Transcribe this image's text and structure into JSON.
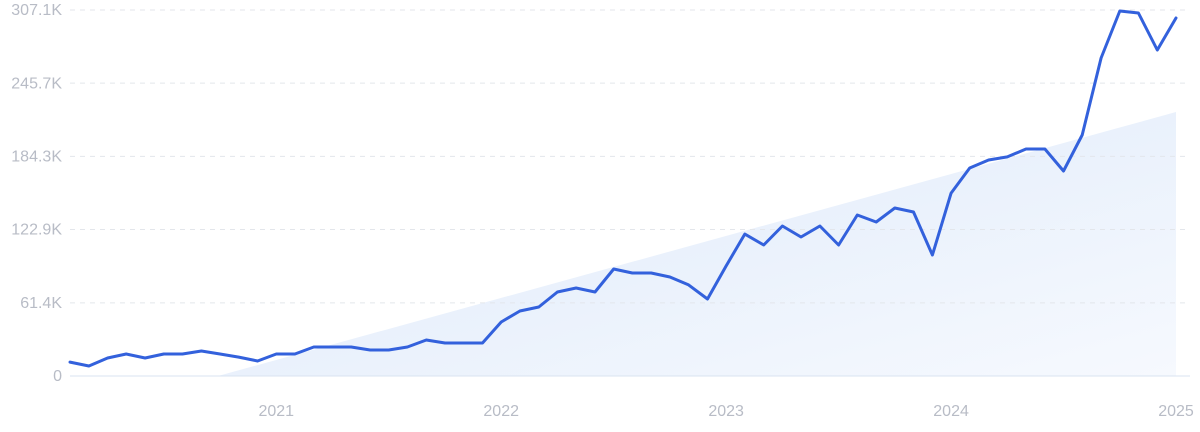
{
  "chart_data": {
    "type": "line",
    "x": [
      2020.083,
      2020.167,
      2020.25,
      2020.333,
      2020.417,
      2020.5,
      2020.583,
      2020.667,
      2020.75,
      2020.833,
      2020.917,
      2021.0,
      2021.083,
      2021.167,
      2021.25,
      2021.333,
      2021.417,
      2021.5,
      2021.583,
      2021.667,
      2021.75,
      2021.833,
      2021.917,
      2022.0,
      2022.083,
      2022.167,
      2022.25,
      2022.333,
      2022.417,
      2022.5,
      2022.583,
      2022.667,
      2022.75,
      2022.833,
      2022.917,
      2023.0,
      2023.083,
      2023.167,
      2023.25,
      2023.333,
      2023.417,
      2023.5,
      2023.583,
      2023.667,
      2023.75,
      2023.833,
      2023.917,
      2024.0,
      2024.083,
      2024.167,
      2024.25,
      2024.333,
      2024.417,
      2024.5,
      2024.583,
      2024.667,
      2024.75,
      2024.833,
      2024.917,
      2025.0
    ],
    "series": [
      {
        "color": "#3361dc",
        "values": [
          11700,
          8400,
          15100,
          18500,
          15100,
          18500,
          18500,
          21000,
          18500,
          15900,
          12600,
          18500,
          18500,
          24300,
          24300,
          24300,
          21800,
          21800,
          24300,
          30200,
          27700,
          27700,
          27700,
          45300,
          54500,
          57900,
          70500,
          73800,
          70500,
          89800,
          86400,
          86400,
          83100,
          76400,
          64600,
          92300,
          119100,
          109900,
          125900,
          116600,
          125900,
          109900,
          135100,
          129200,
          141000,
          137600,
          101500,
          153500,
          174500,
          181200,
          183800,
          190500,
          190500,
          172000,
          202200,
          266800,
          306300,
          304600,
          273500,
          300400
        ]
      }
    ],
    "xlim": [
      2020.083,
      2025.0
    ],
    "xticks": [
      2021,
      2022,
      2023,
      2024,
      2025
    ],
    "ylim": [
      0,
      307100
    ],
    "yticks": [
      0,
      {
        "value": 61400,
        "label": "61.4K"
      },
      {
        "value": 122900,
        "label": "122.9K"
      },
      {
        "value": 184300,
        "label": "184.3K"
      },
      {
        "value": 245700,
        "label": "245.7K"
      },
      {
        "value": 307100,
        "label": "307.1K"
      }
    ],
    "grid": true
  }
}
